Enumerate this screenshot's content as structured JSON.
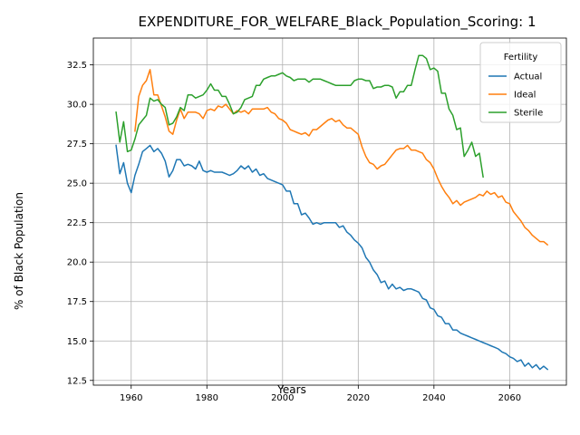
{
  "chart_data": {
    "type": "line",
    "title": "EXPENDITURE_FOR_WELFARE_Black_Population_Scoring: 1",
    "xlabel": "Years",
    "ylabel": "% of Black Population",
    "xlim": [
      1950,
      2075
    ],
    "ylim": [
      12.2,
      34.2
    ],
    "xticks": [
      1960,
      1980,
      2000,
      2020,
      2040,
      2060
    ],
    "yticks": [
      12.5,
      15.0,
      17.5,
      20.0,
      22.5,
      25.0,
      27.5,
      30.0,
      32.5
    ],
    "xtick_labels": [
      "1960",
      "1980",
      "2000",
      "2020",
      "2040",
      "2060"
    ],
    "ytick_labels": [
      "12.5",
      "15.0",
      "17.5",
      "20.0",
      "22.5",
      "25.0",
      "27.5",
      "30.0",
      "32.5"
    ],
    "grid": true,
    "legend": {
      "title": "Fertility",
      "placement": "top-right"
    },
    "series": [
      {
        "name": "Actual",
        "color": "#1f77b4",
        "x": [
          1956,
          1957,
          1958,
          1959,
          1960,
          1961,
          1962,
          1963,
          1964,
          1965,
          1966,
          1967,
          1968,
          1969,
          1970,
          1971,
          1972,
          1973,
          1974,
          1975,
          1976,
          1977,
          1978,
          1979,
          1980,
          1981,
          1982,
          1983,
          1984,
          1985,
          1986,
          1987,
          1988,
          1989,
          1990,
          1991,
          1992,
          1993,
          1994,
          1995,
          1996,
          1997,
          1998,
          1999,
          2000,
          2001,
          2002,
          2003,
          2004,
          2005,
          2006,
          2007,
          2008,
          2009,
          2010,
          2011,
          2012,
          2013,
          2014,
          2015,
          2016,
          2017,
          2018,
          2019,
          2020,
          2021,
          2022,
          2023,
          2024,
          2025,
          2026,
          2027,
          2028,
          2029,
          2030,
          2031,
          2032,
          2033,
          2034,
          2035,
          2036,
          2037,
          2038,
          2039,
          2040,
          2041,
          2042,
          2043,
          2044,
          2045,
          2046,
          2047,
          2048,
          2049,
          2050,
          2051,
          2052,
          2053,
          2054,
          2055,
          2056,
          2057,
          2058,
          2059,
          2060,
          2061,
          2062,
          2063,
          2064,
          2065,
          2066,
          2067,
          2068,
          2069,
          2070
        ],
        "values": [
          27.4,
          25.6,
          26.3,
          25.0,
          24.4,
          25.5,
          26.2,
          27.0,
          27.2,
          27.4,
          27.0,
          27.2,
          26.9,
          26.4,
          25.4,
          25.8,
          26.5,
          26.5,
          26.1,
          26.2,
          26.1,
          25.9,
          26.4,
          25.8,
          25.7,
          25.8,
          25.7,
          25.7,
          25.7,
          25.6,
          25.5,
          25.6,
          25.8,
          26.1,
          25.9,
          26.1,
          25.7,
          25.9,
          25.5,
          25.6,
          25.3,
          25.2,
          25.1,
          25.0,
          24.9,
          24.5,
          24.5,
          23.7,
          23.7,
          23.0,
          23.1,
          22.8,
          22.4,
          22.5,
          22.4,
          22.5,
          22.5,
          22.5,
          22.5,
          22.2,
          22.3,
          21.9,
          21.7,
          21.4,
          21.2,
          20.9,
          20.3,
          20.0,
          19.5,
          19.2,
          18.7,
          18.8,
          18.3,
          18.6,
          18.3,
          18.4,
          18.2,
          18.3,
          18.3,
          18.2,
          18.1,
          17.7,
          17.6,
          17.1,
          17.0,
          16.6,
          16.5,
          16.1,
          16.1,
          15.7,
          15.7,
          15.5,
          15.4,
          15.3,
          15.2,
          15.1,
          15.0,
          14.9,
          14.8,
          14.7,
          14.6,
          14.5,
          14.3,
          14.2,
          14.0,
          13.9,
          13.7,
          13.8,
          13.4,
          13.6,
          13.3,
          13.5,
          13.2,
          13.4,
          13.2
        ]
      },
      {
        "name": "Ideal",
        "color": "#ff7f0e",
        "x": [
          1961,
          1962,
          1963,
          1964,
          1965,
          1966,
          1967,
          1968,
          1969,
          1970,
          1971,
          1972,
          1973,
          1974,
          1975,
          1976,
          1977,
          1978,
          1979,
          1980,
          1981,
          1982,
          1983,
          1984,
          1985,
          1986,
          1987,
          1988,
          1989,
          1990,
          1991,
          1992,
          1993,
          1994,
          1995,
          1996,
          1997,
          1998,
          1999,
          2000,
          2001,
          2002,
          2003,
          2004,
          2005,
          2006,
          2007,
          2008,
          2009,
          2010,
          2011,
          2012,
          2013,
          2014,
          2015,
          2016,
          2017,
          2018,
          2019,
          2020,
          2021,
          2022,
          2023,
          2024,
          2025,
          2026,
          2027,
          2028,
          2029,
          2030,
          2031,
          2032,
          2033,
          2034,
          2035,
          2036,
          2037,
          2038,
          2039,
          2040,
          2041,
          2042,
          2043,
          2044,
          2045,
          2046,
          2047,
          2048,
          2049,
          2050,
          2051,
          2052,
          2053,
          2054,
          2055,
          2056,
          2057,
          2058,
          2059,
          2060,
          2061,
          2062,
          2063,
          2064,
          2065,
          2066,
          2067,
          2068,
          2069,
          2070
        ],
        "values": [
          28.3,
          30.5,
          31.2,
          31.5,
          32.2,
          30.6,
          30.6,
          29.9,
          29.2,
          28.3,
          28.1,
          29.0,
          29.7,
          29.1,
          29.5,
          29.5,
          29.5,
          29.4,
          29.1,
          29.6,
          29.7,
          29.6,
          29.9,
          29.8,
          30.0,
          29.7,
          29.4,
          29.6,
          29.5,
          29.6,
          29.4,
          29.7,
          29.7,
          29.7,
          29.7,
          29.8,
          29.5,
          29.4,
          29.1,
          29.0,
          28.8,
          28.4,
          28.3,
          28.2,
          28.1,
          28.2,
          28.0,
          28.4,
          28.4,
          28.6,
          28.8,
          29.0,
          29.1,
          28.9,
          29.0,
          28.7,
          28.5,
          28.5,
          28.3,
          28.1,
          27.3,
          26.7,
          26.3,
          26.2,
          25.9,
          26.1,
          26.2,
          26.5,
          26.8,
          27.1,
          27.2,
          27.2,
          27.4,
          27.1,
          27.1,
          27.0,
          26.9,
          26.5,
          26.3,
          25.9,
          25.3,
          24.8,
          24.4,
          24.1,
          23.7,
          23.9,
          23.6,
          23.8,
          23.9,
          24.0,
          24.1,
          24.3,
          24.2,
          24.5,
          24.3,
          24.4,
          24.1,
          24.2,
          23.8,
          23.7,
          23.2,
          22.9,
          22.6,
          22.2,
          22.0,
          21.7,
          21.5,
          21.3,
          21.3,
          21.1
        ]
      },
      {
        "name": "Sterile",
        "color": "#2ca02c",
        "x": [
          1956,
          1957,
          1958,
          1959,
          1960,
          1961,
          1962,
          1963,
          1964,
          1965,
          1966,
          1967,
          1968,
          1969,
          1970,
          1971,
          1972,
          1973,
          1974,
          1975,
          1976,
          1977,
          1978,
          1979,
          1980,
          1981,
          1982,
          1983,
          1984,
          1985,
          1986,
          1987,
          1988,
          1989,
          1990,
          1991,
          1992,
          1993,
          1994,
          1995,
          1996,
          1997,
          1998,
          1999,
          2000,
          2001,
          2002,
          2003,
          2004,
          2005,
          2006,
          2007,
          2008,
          2009,
          2010,
          2011,
          2012,
          2013,
          2014,
          2015,
          2016,
          2017,
          2018,
          2019,
          2020,
          2021,
          2022,
          2023,
          2024,
          2025,
          2026,
          2027,
          2028,
          2029,
          2030,
          2031,
          2032,
          2033,
          2034,
          2035,
          2036,
          2037,
          2038,
          2039,
          2040,
          2041,
          2042,
          2043,
          2044,
          2045,
          2046,
          2047,
          2048,
          2049,
          2050,
          2051,
          2052,
          2053
        ],
        "values": [
          29.5,
          27.6,
          28.9,
          27.0,
          27.1,
          27.8,
          28.7,
          29.0,
          29.3,
          30.4,
          30.2,
          30.3,
          30.0,
          29.8,
          28.7,
          28.8,
          29.2,
          29.8,
          29.6,
          30.6,
          30.6,
          30.4,
          30.5,
          30.6,
          30.9,
          31.3,
          30.9,
          30.9,
          30.5,
          30.5,
          30.0,
          29.4,
          29.5,
          29.8,
          30.3,
          30.4,
          30.5,
          31.2,
          31.2,
          31.6,
          31.7,
          31.8,
          31.8,
          31.9,
          32.0,
          31.8,
          31.7,
          31.5,
          31.6,
          31.6,
          31.6,
          31.4,
          31.6,
          31.6,
          31.6,
          31.5,
          31.4,
          31.3,
          31.2,
          31.2,
          31.2,
          31.2,
          31.2,
          31.5,
          31.6,
          31.6,
          31.5,
          31.5,
          31.0,
          31.1,
          31.1,
          31.2,
          31.2,
          31.1,
          30.4,
          30.8,
          30.8,
          31.2,
          31.2,
          32.2,
          33.1,
          33.1,
          32.9,
          32.2,
          32.3,
          32.1,
          30.7,
          30.7,
          29.7,
          29.3,
          28.4,
          28.5,
          26.7,
          27.1,
          27.6,
          26.7,
          26.9,
          25.4
        ]
      }
    ]
  }
}
